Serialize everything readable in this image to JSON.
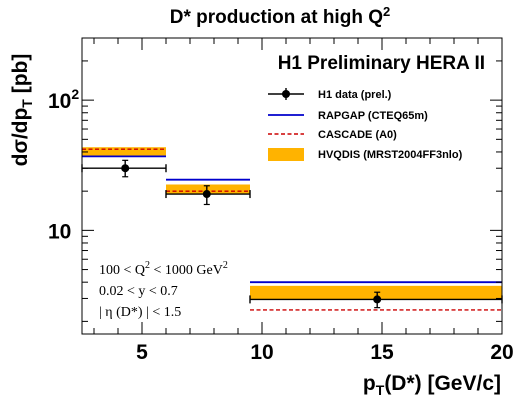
{
  "chart_data": {
    "type": "step-histogram",
    "title": "D* production at high Q",
    "title_sup": "2",
    "watermark": "H1 Preliminary HERA II",
    "xlabel": {
      "main": "p",
      "sub": "T",
      "rest": "(D*) [GeV/c]"
    },
    "ylabel": {
      "main": "dσ/dp",
      "sub": "T",
      "rest": " [pb]"
    },
    "xlim": [
      2.5,
      20
    ],
    "ylim": [
      1.6,
      300
    ],
    "y_scale": "log",
    "x_tick_labels": [
      "5",
      "10",
      "15",
      "20"
    ],
    "x_tick_values": [
      5,
      10,
      15,
      20
    ],
    "y_tick_labels": [
      {
        "base": "10",
        "exp": ""
      },
      {
        "base": "10",
        "exp": "2"
      }
    ],
    "y_tick_values": [
      10,
      100
    ],
    "bins": [
      {
        "lo": 2.5,
        "hi": 6.0
      },
      {
        "lo": 6.0,
        "hi": 9.5
      },
      {
        "lo": 9.5,
        "hi": 20.0
      }
    ],
    "series": [
      {
        "name": "H1 data (prel.)",
        "kind": "points",
        "color": "#000000",
        "points": [
          {
            "x": 4.3,
            "y": 30.0,
            "y_err_lo": 25.8,
            "y_err_hi": 34.5
          },
          {
            "x": 7.7,
            "y": 19.0,
            "y_err_lo": 15.8,
            "y_err_hi": 22.0
          },
          {
            "x": 14.8,
            "y": 2.95,
            "y_err_lo": 2.55,
            "y_err_hi": 3.35
          }
        ]
      },
      {
        "name": "RAPGAP (CTEQ65m)",
        "kind": "line",
        "color": "#0000cc",
        "values": [
          37.0,
          24.5,
          4.0
        ]
      },
      {
        "name": "CASCADE (A0)",
        "kind": "dashed",
        "color": "#cc0000",
        "values": [
          42.0,
          20.0,
          2.45
        ]
      },
      {
        "name": "HVQDIS (MRST2004FF3nlo)",
        "kind": "band",
        "color": "#ffb300",
        "lo": [
          37.5,
          19.2,
          2.95
        ],
        "hi": [
          43.5,
          22.5,
          3.75
        ]
      }
    ],
    "legend_placement": "top-right",
    "cuts": [
      {
        "pre": "100 < Q",
        "sup": "2",
        "post": " < 1000 GeV",
        "sup2": "2"
      },
      {
        "pre": "0.02 < y < 0.7",
        "sup": "",
        "post": "",
        "sup2": ""
      },
      {
        "pre": "| η (D*) | < 1.5",
        "sup": "",
        "post": "",
        "sup2": ""
      }
    ]
  }
}
